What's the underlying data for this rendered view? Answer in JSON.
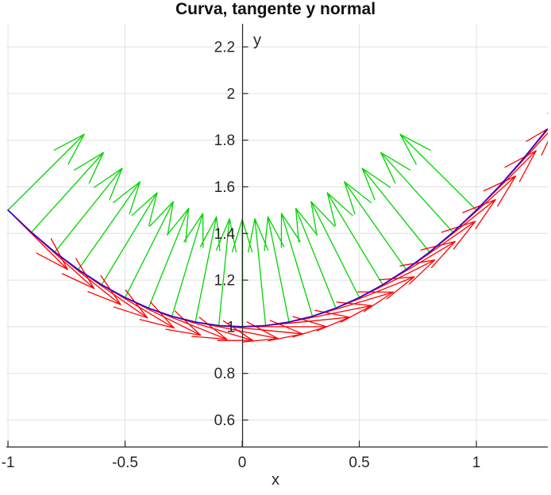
{
  "chart_data": {
    "type": "line",
    "title": "Curva, tangente y normal",
    "xlabel": "x",
    "ylabel": "y",
    "grid": true,
    "xlim": [
      -1.007,
      1.305
    ],
    "ylim": [
      0.486,
      2.299
    ],
    "x_ticks": [
      {
        "v": -1,
        "label": "-1"
      },
      {
        "v": -0.5,
        "label": "-0.5"
      },
      {
        "v": 0,
        "label": "0"
      },
      {
        "v": 0.5,
        "label": "0.5"
      },
      {
        "v": 1,
        "label": "1"
      }
    ],
    "y_ticks": [
      {
        "v": 0.6,
        "label": "0.6"
      },
      {
        "v": 0.8,
        "label": "0.8"
      },
      {
        "v": 1,
        "label": "1"
      },
      {
        "v": 1.2,
        "label": "1.2"
      },
      {
        "v": 1.4,
        "label": "1.4"
      },
      {
        "v": 1.6,
        "label": "1.6"
      },
      {
        "v": 1.8,
        "label": "1.8"
      },
      {
        "v": 2,
        "label": "2"
      },
      {
        "v": 2.2,
        "label": "2.2"
      }
    ],
    "curve": {
      "name": "curva",
      "formula": "y = 1 + x^2/2",
      "color": "#3300cc",
      "points": [
        [
          -1,
          1.5
        ],
        [
          -0.9,
          1.405
        ],
        [
          -0.8,
          1.32
        ],
        [
          -0.7,
          1.245
        ],
        [
          -0.6,
          1.18
        ],
        [
          -0.5,
          1.125
        ],
        [
          -0.4,
          1.08
        ],
        [
          -0.3,
          1.045
        ],
        [
          -0.2,
          1.02
        ],
        [
          -0.1,
          1.005
        ],
        [
          0,
          1
        ],
        [
          0.1,
          1.005
        ],
        [
          0.2,
          1.02
        ],
        [
          0.3,
          1.045
        ],
        [
          0.4,
          1.08
        ],
        [
          0.5,
          1.125
        ],
        [
          0.6,
          1.18
        ],
        [
          0.7,
          1.245
        ],
        [
          0.8,
          1.32
        ],
        [
          0.9,
          1.405
        ],
        [
          1,
          1.5
        ],
        [
          1.1,
          1.605
        ],
        [
          1.2,
          1.72
        ],
        [
          1.3,
          1.845
        ]
      ]
    },
    "tangent_arrows": {
      "name": "tangente",
      "color": "#ff0000",
      "length": 0.36,
      "head_len": 0.15,
      "head_angle_deg": 17,
      "vectors": [
        [
          -1,
          1.5,
          0.7071,
          -0.7071
        ],
        [
          -0.9,
          1.405,
          0.7433,
          -0.669
        ],
        [
          -0.8,
          1.32,
          0.7809,
          -0.6247
        ],
        [
          -0.7,
          1.245,
          0.8192,
          -0.5735
        ],
        [
          -0.6,
          1.18,
          0.8575,
          -0.5145
        ],
        [
          -0.5,
          1.125,
          0.8944,
          -0.4472
        ],
        [
          -0.4,
          1.08,
          0.9285,
          -0.3714
        ],
        [
          -0.3,
          1.045,
          0.9578,
          -0.2873
        ],
        [
          -0.2,
          1.02,
          0.9806,
          -0.1961
        ],
        [
          -0.1,
          1.005,
          0.995,
          -0.0995
        ],
        [
          0,
          1,
          1,
          0
        ],
        [
          0.1,
          1.005,
          0.995,
          0.0995
        ],
        [
          0.2,
          1.02,
          0.9806,
          0.1961
        ],
        [
          0.3,
          1.045,
          0.9578,
          0.2873
        ],
        [
          0.4,
          1.08,
          0.9285,
          0.3714
        ],
        [
          0.5,
          1.125,
          0.8944,
          0.4472
        ],
        [
          0.6,
          1.18,
          0.8575,
          0.5145
        ],
        [
          0.7,
          1.245,
          0.8192,
          0.5735
        ],
        [
          0.8,
          1.32,
          0.7809,
          0.6247
        ],
        [
          0.9,
          1.405,
          0.7433,
          0.669
        ],
        [
          1,
          1.5,
          0.7071,
          0.7071
        ],
        [
          1.1,
          1.605,
          0.6727,
          0.7399
        ],
        [
          1.2,
          1.72,
          0.6402,
          0.7682
        ]
      ]
    },
    "normal_arrows": {
      "name": "normal",
      "color": "#00d400",
      "length": 0.46,
      "head_len": 0.145,
      "head_angle_deg": 17,
      "vectors": [
        [
          -1,
          1.5,
          0.7071,
          0.7071
        ],
        [
          -0.9,
          1.405,
          0.669,
          0.7433
        ],
        [
          -0.8,
          1.32,
          0.6247,
          0.7809
        ],
        [
          -0.7,
          1.245,
          0.5735,
          0.8192
        ],
        [
          -0.6,
          1.18,
          0.5145,
          0.8575
        ],
        [
          -0.5,
          1.125,
          0.4472,
          0.8944
        ],
        [
          -0.4,
          1.08,
          0.3714,
          0.9285
        ],
        [
          -0.3,
          1.045,
          0.2873,
          0.9578
        ],
        [
          -0.2,
          1.02,
          0.1961,
          0.9806
        ],
        [
          -0.1,
          1.005,
          0.0995,
          0.995
        ],
        [
          0,
          1,
          0,
          1
        ],
        [
          0.1,
          1.005,
          -0.0995,
          0.995
        ],
        [
          0.2,
          1.02,
          -0.1961,
          0.9806
        ],
        [
          0.3,
          1.045,
          -0.2873,
          0.9578
        ],
        [
          0.4,
          1.08,
          -0.3714,
          0.9285
        ],
        [
          0.5,
          1.125,
          -0.4472,
          0.8944
        ],
        [
          0.6,
          1.18,
          -0.5145,
          0.8575
        ],
        [
          0.7,
          1.245,
          -0.5735,
          0.8192
        ],
        [
          0.8,
          1.32,
          -0.6247,
          0.7809
        ],
        [
          0.9,
          1.405,
          -0.669,
          0.7433
        ],
        [
          1,
          1.5,
          -0.7071,
          0.7071
        ]
      ]
    },
    "style": {
      "axis_color": "#262626",
      "grid_color": "#e0e0e0",
      "tick_label_color": "#262626",
      "tick_font_px": 19,
      "background": "#ffffff"
    }
  }
}
